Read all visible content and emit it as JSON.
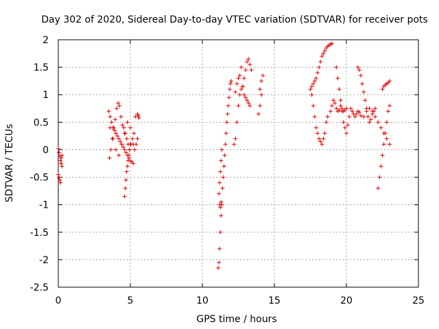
{
  "chart_data": {
    "type": "scatter",
    "title": "Day 302 of 2020, Sidereal Day-to-day VTEC variation (SDTVAR) for receiver pots",
    "xlabel": "GPS time / hours",
    "ylabel": "SDTVAR / TECUs",
    "xlim": [
      0,
      25
    ],
    "ylim": [
      -2.5,
      2
    ],
    "xticks": [
      "0",
      "5",
      "10",
      "15",
      "20",
      "25"
    ],
    "yticks": [
      "-2.5",
      "-2",
      "-1.5",
      "-1",
      "-0.5",
      "0",
      "0.5",
      "1",
      "1.5",
      "2"
    ],
    "grid": true,
    "marker": "+",
    "color": "#ff0000",
    "series": [
      {
        "name": "SDTVAR",
        "x": [
          0.0,
          0.05,
          0.1,
          0.15,
          0.2,
          0.25,
          0.0,
          0.05,
          0.1,
          0.15,
          0.2,
          0.25,
          3.5,
          3.6,
          3.7,
          3.8,
          3.9,
          4.0,
          4.1,
          4.2,
          4.3,
          4.4,
          4.5,
          4.6,
          4.7,
          4.8,
          4.9,
          5.0,
          5.1,
          5.2,
          5.3,
          5.4,
          5.5,
          3.55,
          3.65,
          3.75,
          3.85,
          3.95,
          4.05,
          4.15,
          4.25,
          4.35,
          4.45,
          4.55,
          4.65,
          4.75,
          4.85,
          4.95,
          5.05,
          5.15,
          5.25,
          5.35,
          3.6,
          3.8,
          4.0,
          4.2,
          4.4,
          4.6,
          4.8,
          5.0,
          5.2,
          4.6,
          4.65,
          4.7,
          4.75,
          4.8,
          4.85,
          4.9,
          4.95,
          5.0,
          5.5,
          5.55,
          5.6,
          11.1,
          11.15,
          11.2,
          11.25,
          11.3,
          11.35,
          11.4,
          11.45,
          11.5,
          11.55,
          11.6,
          11.65,
          11.7,
          11.75,
          11.8,
          11.85,
          11.9,
          11.95,
          12.0,
          11.15,
          11.2,
          11.25,
          11.3,
          11.35,
          11.2,
          11.25,
          11.3,
          12.2,
          12.3,
          12.4,
          12.5,
          12.6,
          12.7,
          12.8,
          12.9,
          13.0,
          13.1,
          13.2,
          13.3,
          13.4,
          12.3,
          12.4,
          12.5,
          12.6,
          12.7,
          12.8,
          12.9,
          13.0,
          13.1,
          13.2,
          13.3,
          13.9,
          14.0,
          14.1,
          14.2,
          14.0,
          14.1,
          17.5,
          17.6,
          17.7,
          17.8,
          17.9,
          18.0,
          18.1,
          18.2,
          18.3,
          18.4,
          18.5,
          18.6,
          18.7,
          18.8,
          18.9,
          19.0,
          17.6,
          17.7,
          17.8,
          17.9,
          18.0,
          18.1,
          18.2,
          18.3,
          18.4,
          18.5,
          18.6,
          18.7,
          18.9,
          19.0,
          19.1,
          19.2,
          19.3,
          19.4,
          19.5,
          19.6,
          19.7,
          19.8,
          19.9,
          20.0,
          19.3,
          19.4,
          19.5,
          19.6,
          19.7,
          19.8,
          19.9,
          20.0,
          20.1,
          20.2,
          20.3,
          20.4,
          20.5,
          20.6,
          20.7,
          20.8,
          20.9,
          21.0,
          20.8,
          20.9,
          21.0,
          21.1,
          21.2,
          21.3,
          21.4,
          21.5,
          21.6,
          21.7,
          21.8,
          21.9,
          22.0,
          21.2,
          21.4,
          21.6,
          21.8,
          22.0,
          22.2,
          22.4,
          22.6,
          22.8,
          23.0,
          22.2,
          22.3,
          22.4,
          22.5,
          22.6,
          22.7,
          22.8,
          22.9,
          23.0,
          22.5,
          22.6,
          22.7,
          22.8,
          22.9,
          23.0
        ],
        "y": [
          0.02,
          -0.05,
          -0.12,
          -0.2,
          -0.25,
          -0.1,
          -0.45,
          -0.5,
          -0.55,
          -0.6,
          -0.15,
          -0.3,
          0.7,
          0.6,
          0.5,
          0.4,
          0.35,
          0.3,
          0.25,
          0.2,
          0.15,
          0.1,
          0.05,
          0.0,
          -0.05,
          -0.1,
          -0.15,
          -0.2,
          -0.22,
          -0.25,
          0.0,
          0.1,
          0.2,
          -0.15,
          0.0,
          0.2,
          0.4,
          0.55,
          0.75,
          0.85,
          0.8,
          0.6,
          0.45,
          0.4,
          0.3,
          0.2,
          0.1,
          0.0,
          0.1,
          0.2,
          0.3,
          0.6,
          0.4,
          0.2,
          0.0,
          -0.1,
          0.1,
          0.3,
          0.5,
          0.4,
          0.1,
          -0.85,
          -0.7,
          -0.55,
          -0.4,
          -0.3,
          -0.2,
          -0.1,
          0.0,
          0.1,
          0.65,
          0.62,
          0.58,
          -2.15,
          -2.05,
          -1.8,
          -1.5,
          -1.2,
          -1.0,
          -0.7,
          -0.5,
          -0.3,
          -0.1,
          0.1,
          0.3,
          0.5,
          0.65,
          0.8,
          0.95,
          1.1,
          1.2,
          1.25,
          -0.8,
          -0.6,
          -0.4,
          -0.2,
          0.0,
          -1.0,
          -1.05,
          -0.95,
          0.1,
          0.2,
          0.5,
          0.8,
          1.0,
          1.1,
          1.15,
          1.3,
          1.45,
          1.6,
          1.65,
          1.55,
          1.45,
          1.05,
          1.2,
          1.3,
          1.35,
          1.5,
          1.15,
          1.0,
          0.95,
          0.9,
          0.85,
          0.8,
          0.65,
          0.8,
          1.0,
          1.35,
          1.1,
          1.25,
          1.1,
          1.15,
          1.2,
          1.25,
          1.3,
          1.4,
          1.5,
          1.6,
          1.7,
          1.75,
          1.8,
          1.85,
          1.88,
          1.9,
          1.92,
          1.93,
          1.0,
          0.8,
          0.6,
          0.4,
          0.3,
          0.2,
          0.15,
          0.1,
          0.2,
          0.3,
          0.5,
          0.6,
          0.7,
          0.8,
          0.9,
          0.85,
          0.75,
          0.7,
          0.72,
          0.8,
          0.75,
          0.7,
          0.72,
          0.75,
          1.5,
          1.3,
          1.1,
          0.9,
          0.7,
          0.5,
          0.4,
          0.3,
          0.45,
          0.6,
          0.75,
          0.7,
          0.65,
          0.6,
          0.65,
          0.7,
          0.68,
          0.62,
          1.5,
          1.45,
          1.35,
          1.2,
          1.05,
          0.9,
          0.75,
          0.6,
          0.5,
          0.55,
          0.65,
          0.7,
          0.75,
          0.6,
          0.7,
          0.75,
          0.7,
          0.6,
          0.5,
          0.4,
          0.3,
          0.2,
          0.1,
          -0.7,
          -0.5,
          -0.3,
          -0.1,
          0.1,
          0.3,
          0.5,
          0.7,
          0.8,
          1.1,
          1.15,
          1.18,
          1.2,
          1.22,
          1.25
        ]
      }
    ]
  }
}
